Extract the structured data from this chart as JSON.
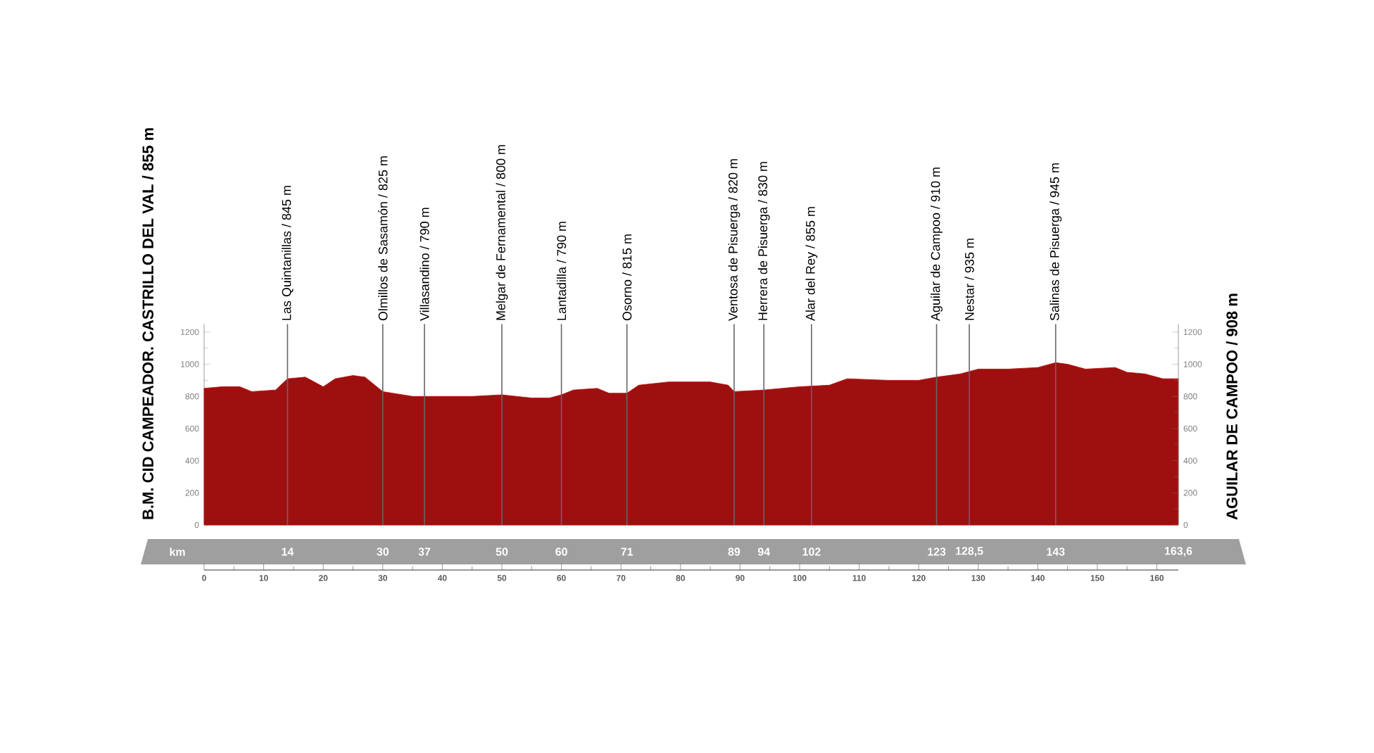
{
  "chart_data": {
    "type": "area",
    "color": "#9e1010",
    "x": [
      0,
      3,
      6,
      8,
      12,
      14,
      17,
      20,
      22,
      25,
      27,
      30,
      35,
      40,
      45,
      50,
      55,
      58,
      60,
      62,
      66,
      68,
      71,
      73,
      78,
      85,
      88,
      89,
      94,
      100,
      105,
      108,
      115,
      120,
      123,
      127,
      130,
      135,
      140,
      143,
      145,
      148,
      153,
      155,
      158,
      161,
      163.6
    ],
    "values": [
      850,
      860,
      860,
      830,
      840,
      910,
      920,
      860,
      910,
      930,
      920,
      830,
      800,
      800,
      800,
      810,
      790,
      790,
      810,
      840,
      850,
      820,
      820,
      870,
      890,
      890,
      870,
      830,
      840,
      860,
      870,
      910,
      900,
      900,
      920,
      940,
      970,
      970,
      980,
      1010,
      1000,
      970,
      980,
      950,
      940,
      910,
      910
    ],
    "xlim": [
      0,
      163.6
    ],
    "xticks": [
      0,
      10,
      20,
      30,
      40,
      50,
      60,
      70,
      80,
      90,
      100,
      110,
      120,
      130,
      140,
      150,
      160
    ],
    "ylim": [
      0,
      1250
    ],
    "yticks": [
      0,
      200,
      400,
      600,
      800,
      1000,
      1200
    ],
    "y2lim": [
      0,
      1250
    ],
    "y2ticks": [
      0,
      200,
      400,
      600,
      800,
      1000,
      1200
    ],
    "x2lim": [
      0,
      163.6
    ],
    "x2label": "km",
    "x2ticks": [
      14,
      30,
      37,
      50,
      60,
      71,
      89,
      94,
      102,
      123,
      {
        "value": 128.5,
        "label": "128,5"
      },
      143,
      {
        "value": 163.6,
        "label": "163,6"
      }
    ],
    "ylabel": "B.M. CID CAMPEADOR. CASTRILLO DEL VAL / 855 m",
    "y2label": "AGUILAR DE CAMPOO / 908 m",
    "ref_lines": [
      {
        "axis": "x",
        "value": 14,
        "label": "Las Quintanillas / 845 m"
      },
      {
        "axis": "x",
        "value": 30,
        "label": "Olmillos de Sasamón / 825 m"
      },
      {
        "axis": "x",
        "value": 37,
        "label": "Villasandino / 790 m"
      },
      {
        "axis": "x",
        "value": 50,
        "label": "Melgar de Fernamental / 800 m"
      },
      {
        "axis": "x",
        "value": 60,
        "label": "Lantadilla / 790 m"
      },
      {
        "axis": "x",
        "value": 71,
        "label": "Osorno / 815 m"
      },
      {
        "axis": "x",
        "value": 89,
        "label": "Ventosa de Pisuerga / 820 m"
      },
      {
        "axis": "x",
        "value": 94,
        "label": "Herrera de Pisuerga / 830 m"
      },
      {
        "axis": "x",
        "value": 102,
        "label": "Alar del Rey / 855 m"
      },
      {
        "axis": "x",
        "value": 123,
        "label": "Aguilar de Campoo / 910 m"
      },
      {
        "axis": "x",
        "value": 128.5,
        "label": "Nestar / 935 m"
      },
      {
        "axis": "x",
        "value": 143,
        "label": "Salinas de Pisuerga / 945 m"
      }
    ]
  }
}
